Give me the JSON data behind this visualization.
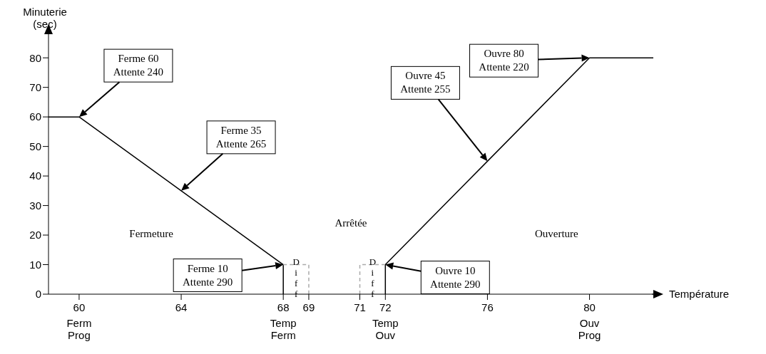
{
  "chart_data": {
    "type": "line",
    "ylabel": "Minuterie\n(sec)",
    "xlabel": "Température",
    "xlim": [
      58.8,
      82.5
    ],
    "ylim": [
      0,
      88
    ],
    "xticks": [
      {
        "value": 60,
        "label": "60\nFerm\nProg"
      },
      64,
      {
        "value": 68,
        "label": "68\nTemp\nFerm"
      },
      69,
      71,
      {
        "value": 72,
        "label": "72\nTemp\nOuv"
      },
      76,
      {
        "value": 80,
        "label": "80\nOuv\nProg"
      }
    ],
    "yticks": [
      0,
      10,
      20,
      30,
      40,
      50,
      60,
      70,
      80
    ],
    "marker": "none",
    "series": [
      {
        "color": "#000000",
        "line_style": "solid",
        "x": [
          58.8,
          60,
          64,
          68,
          68
        ],
        "values": [
          60,
          60,
          35,
          10,
          0
        ]
      },
      {
        "color": "#000000",
        "line_style": "solid",
        "x": [
          72,
          72,
          76,
          80,
          82.5
        ],
        "values": [
          0,
          10,
          45,
          80,
          80
        ]
      },
      {
        "color": "#aaaaaa",
        "line_style": "dashed",
        "x": [
          68,
          69,
          69
        ],
        "values": [
          10,
          10,
          0
        ]
      },
      {
        "color": "#aaaaaa",
        "line_style": "dashed",
        "x": [
          71,
          71,
          72
        ],
        "values": [
          0,
          10,
          10
        ]
      }
    ],
    "annotations": [
      "Ferme 60\nAttente 240",
      "Ferme 35\nAttente 265",
      "Ferme 10\nAttente 290",
      "Ouvre 10\nAttente 290",
      "Ouvre 45\nAttente 255",
      "Ouvre 80\nAttente 220",
      "Fermeture",
      "Arrêtée",
      "Ouverture",
      "Diff",
      "Diff"
    ]
  }
}
